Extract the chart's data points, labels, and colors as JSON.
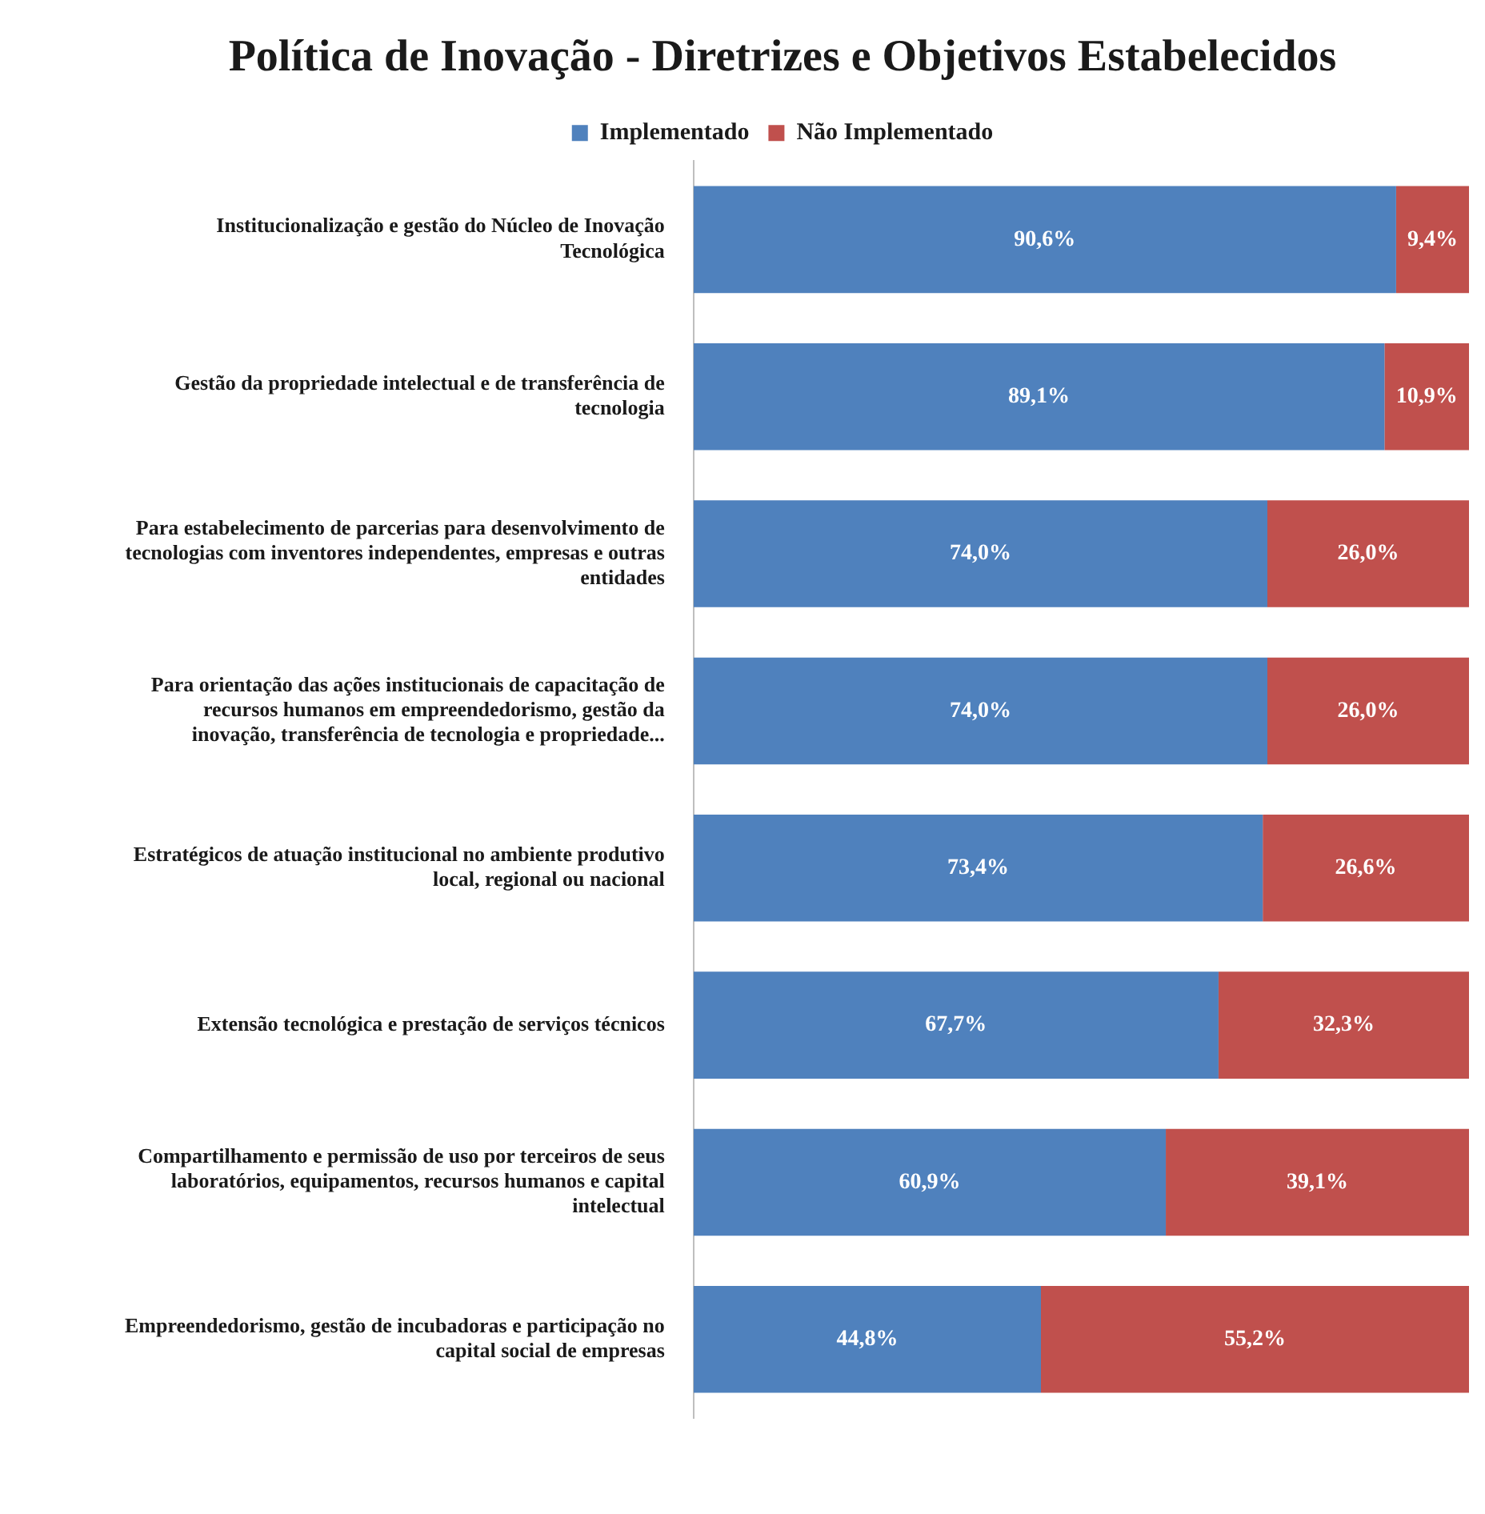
{
  "chart_data": {
    "type": "bar",
    "orientation": "horizontal",
    "stacked": true,
    "title": "Política de Inovação - Diretrizes e Objetivos Estabelecidos",
    "legend": "top",
    "data_labels": true,
    "categories": [
      "Institucionalização e gestão do Núcleo de Inovação Tecnológica",
      "Gestão da propriedade intelectual e de transferência de tecnologia",
      "Para estabelecimento de parcerias para desenvolvimento de tecnologias com inventores independentes, empresas e outras entidades",
      "Para orientação das ações institucionais de capacitação de recursos humanos em empreendedorismo, gestão da inovação, transferência de tecnologia e propriedade...",
      "Estratégicos de atuação institucional no ambiente produtivo local, regional ou nacional",
      "Extensão tecnológica e prestação de serviços técnicos",
      "Compartilhamento e permissão de uso por terceiros de seus laboratórios, equipamentos, recursos humanos e capital intelectual",
      "Empreendedorismo, gestão de incubadoras e participação no capital social de empresas"
    ],
    "series": [
      {
        "name": "Implementado",
        "color": "#4f81bd",
        "values": [
          90.6,
          89.1,
          74.0,
          74.0,
          73.4,
          67.7,
          60.9,
          44.8
        ],
        "value_labels": [
          "90,6%",
          "89,1%",
          "74,0%",
          "74,0%",
          "73,4%",
          "67,7%",
          "60,9%",
          "44,8%"
        ]
      },
      {
        "name": "Não Implementado",
        "color": "#c0504d",
        "values": [
          9.4,
          10.9,
          26.0,
          26.0,
          26.6,
          32.3,
          39.1,
          55.2
        ],
        "value_labels": [
          "9,4%",
          "10,9%",
          "26,0%",
          "26,0%",
          "26,6%",
          "32,3%",
          "39,1%",
          "55,2%"
        ]
      }
    ]
  }
}
